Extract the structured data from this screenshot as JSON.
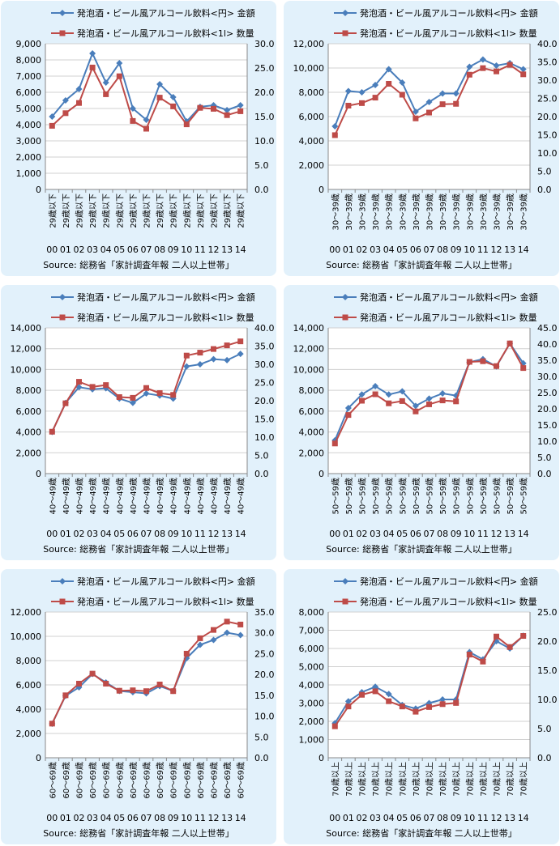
{
  "legend": {
    "amount_label": "発泡酒・ビール風アルコール飲料<円> 金額",
    "quantity_label": "発泡酒・ビール風アルコール飲料<1l> 数量"
  },
  "source": "Source: 総務省「家計調査年報 二人以上世帯」",
  "colors": {
    "amount": "#4a7ebb",
    "quantity": "#be4b48",
    "grid": "#d0d0d0",
    "panel_bg": "#e2f1fb"
  },
  "chart_data": [
    {
      "type": "line",
      "age_label": "29歳以下",
      "categories": [
        "00",
        "01",
        "02",
        "03",
        "04",
        "05",
        "06",
        "07",
        "08",
        "09",
        "10",
        "11",
        "12",
        "13",
        "14"
      ],
      "series": [
        {
          "name": "発泡酒・ビール風アルコール飲料<円> 金額",
          "axis": "left",
          "values": [
            4500,
            5500,
            6200,
            8400,
            6600,
            7800,
            5000,
            4300,
            6500,
            5700,
            4200,
            5100,
            5200,
            4900,
            5200
          ]
        },
        {
          "name": "発泡酒・ビール風アルコール飲料<1l> 数量",
          "axis": "right",
          "values": [
            13.1,
            15.7,
            17.8,
            25.1,
            19.6,
            23.3,
            14.1,
            12.5,
            18.9,
            17.1,
            13.4,
            16.8,
            16.6,
            15.3,
            16.1
          ]
        }
      ],
      "left_ticks": [
        "0",
        "1,000",
        "2,000",
        "3,000",
        "4,000",
        "5,000",
        "6,000",
        "7,000",
        "8,000",
        "9,000"
      ],
      "right_ticks": [
        "0.0",
        "5.0",
        "10.0",
        "15.0",
        "20.0",
        "25.0",
        "30.0"
      ],
      "ylim_left": [
        0,
        9000
      ],
      "ylim_right": [
        0,
        30
      ]
    },
    {
      "type": "line",
      "age_label": "30～39歳",
      "categories": [
        "00",
        "01",
        "02",
        "03",
        "04",
        "05",
        "06",
        "07",
        "08",
        "09",
        "10",
        "11",
        "12",
        "13",
        "14"
      ],
      "series": [
        {
          "name": "発泡酒・ビール風アルコール飲料<円> 金額",
          "axis": "left",
          "values": [
            5200,
            8100,
            8000,
            8600,
            9900,
            8800,
            6400,
            7200,
            7900,
            7900,
            10100,
            10700,
            10200,
            10400,
            9900
          ]
        },
        {
          "name": "発泡酒・ビール風アルコール飲料<1l> 数量",
          "axis": "right",
          "values": [
            14.9,
            23.0,
            23.7,
            25.2,
            29.0,
            26.0,
            19.5,
            21.1,
            23.4,
            23.5,
            31.5,
            33.3,
            32.4,
            34.2,
            31.6
          ]
        }
      ],
      "left_ticks": [
        "0",
        "2,000",
        "4,000",
        "6,000",
        "8,000",
        "10,000",
        "12,000"
      ],
      "right_ticks": [
        "0.0",
        "5.0",
        "10.0",
        "15.0",
        "20.0",
        "25.0",
        "30.0",
        "35.0",
        "40.0"
      ],
      "ylim_left": [
        0,
        12000
      ],
      "ylim_right": [
        0,
        40
      ]
    },
    {
      "type": "line",
      "age_label": "40～49歳",
      "categories": [
        "00",
        "01",
        "02",
        "03",
        "04",
        "05",
        "06",
        "07",
        "08",
        "09",
        "10",
        "11",
        "12",
        "13",
        "14"
      ],
      "series": [
        {
          "name": "発泡酒・ビール風アルコール飲料<円> 金額",
          "axis": "left",
          "values": [
            4000,
            6800,
            8300,
            8100,
            8200,
            7200,
            6800,
            7700,
            7500,
            7200,
            10300,
            10500,
            11000,
            10900,
            11500
          ]
        },
        {
          "name": "発泡酒・ビール風アルコール飲料<1l> 数量",
          "axis": "right",
          "values": [
            11.5,
            19.3,
            25.2,
            23.8,
            24.3,
            21.0,
            20.8,
            23.5,
            22.1,
            21.6,
            32.4,
            33.2,
            34.2,
            35.2,
            36.3
          ]
        }
      ],
      "left_ticks": [
        "0",
        "2,000",
        "4,000",
        "6,000",
        "8,000",
        "10,000",
        "12,000",
        "14,000"
      ],
      "right_ticks": [
        "0.0",
        "5.0",
        "10.0",
        "15.0",
        "20.0",
        "25.0",
        "30.0",
        "35.0",
        "40.0"
      ],
      "ylim_left": [
        0,
        14000
      ],
      "ylim_right": [
        0,
        40
      ]
    },
    {
      "type": "line",
      "age_label": "50～59歳",
      "categories": [
        "00",
        "01",
        "02",
        "03",
        "04",
        "05",
        "06",
        "07",
        "08",
        "09",
        "10",
        "11",
        "12",
        "13",
        "14"
      ],
      "series": [
        {
          "name": "発泡酒・ビール風アルコール飲料<円> 金額",
          "axis": "left",
          "values": [
            3200,
            6300,
            7600,
            8400,
            7600,
            7900,
            6500,
            7200,
            7700,
            7500,
            10700,
            11000,
            10300,
            12500,
            10600
          ]
        },
        {
          "name": "発泡酒・ビール風アルコール飲料<1l> 数量",
          "axis": "right",
          "values": [
            9.3,
            18.1,
            22.5,
            24.5,
            21.7,
            22.4,
            19.2,
            21.4,
            22.6,
            22.3,
            34.5,
            34.7,
            33.2,
            40.2,
            32.6
          ]
        }
      ],
      "left_ticks": [
        "0",
        "2,000",
        "4,000",
        "6,000",
        "8,000",
        "10,000",
        "12,000",
        "14,000"
      ],
      "right_ticks": [
        "0.0",
        "5.0",
        "10.0",
        "15.0",
        "20.0",
        "25.0",
        "30.0",
        "35.0",
        "40.0",
        "45.0"
      ],
      "ylim_left": [
        0,
        14000
      ],
      "ylim_right": [
        0,
        45
      ]
    },
    {
      "type": "line",
      "age_label": "60～69歳",
      "categories": [
        "00",
        "01",
        "02",
        "03",
        "04",
        "05",
        "06",
        "07",
        "08",
        "09",
        "10",
        "11",
        "12",
        "13",
        "14"
      ],
      "series": [
        {
          "name": "発泡酒・ビール風アルコール飲料<円> 金額",
          "axis": "left",
          "values": [
            2800,
            5100,
            5800,
            6900,
            6200,
            5500,
            5400,
            5300,
            5900,
            5500,
            8200,
            9300,
            9700,
            10300,
            10100
          ]
        },
        {
          "name": "発泡酒・ビール風アルコール飲料<1l> 数量",
          "axis": "right",
          "values": [
            8.2,
            15.0,
            17.8,
            20.2,
            17.8,
            16.1,
            16.2,
            16.0,
            17.6,
            16.0,
            25.0,
            28.7,
            30.7,
            32.7,
            32.0
          ]
        }
      ],
      "left_ticks": [
        "0",
        "2,000",
        "4,000",
        "6,000",
        "8,000",
        "10,000",
        "12,000"
      ],
      "right_ticks": [
        "0.0",
        "5.0",
        "10.0",
        "15.0",
        "20.0",
        "25.0",
        "30.0",
        "35.0"
      ],
      "ylim_left": [
        0,
        12000
      ],
      "ylim_right": [
        0,
        35
      ]
    },
    {
      "type": "line",
      "age_label": "70歳以上",
      "categories": [
        "00",
        "01",
        "02",
        "03",
        "04",
        "05",
        "06",
        "07",
        "08",
        "09",
        "10",
        "11",
        "12",
        "13",
        "14"
      ],
      "series": [
        {
          "name": "発泡酒・ビール風アルコール飲料<円> 金額",
          "axis": "left",
          "values": [
            1900,
            3100,
            3600,
            3900,
            3500,
            2900,
            2700,
            3000,
            3200,
            3200,
            5800,
            5400,
            6400,
            6000,
            6700
          ]
        },
        {
          "name": "発泡酒・ビール風アルコール飲料<1l> 数量",
          "axis": "right",
          "values": [
            5.4,
            8.8,
            10.8,
            11.4,
            9.7,
            8.8,
            7.9,
            8.7,
            9.2,
            9.4,
            17.7,
            16.5,
            20.8,
            19.0,
            20.9
          ]
        }
      ],
      "left_ticks": [
        "0",
        "1,000",
        "2,000",
        "3,000",
        "4,000",
        "5,000",
        "6,000",
        "7,000",
        "8,000"
      ],
      "right_ticks": [
        "0.0",
        "5.0",
        "10.0",
        "15.0",
        "20.0",
        "25.0"
      ],
      "ylim_left": [
        0,
        8000
      ],
      "ylim_right": [
        0,
        25
      ]
    }
  ]
}
